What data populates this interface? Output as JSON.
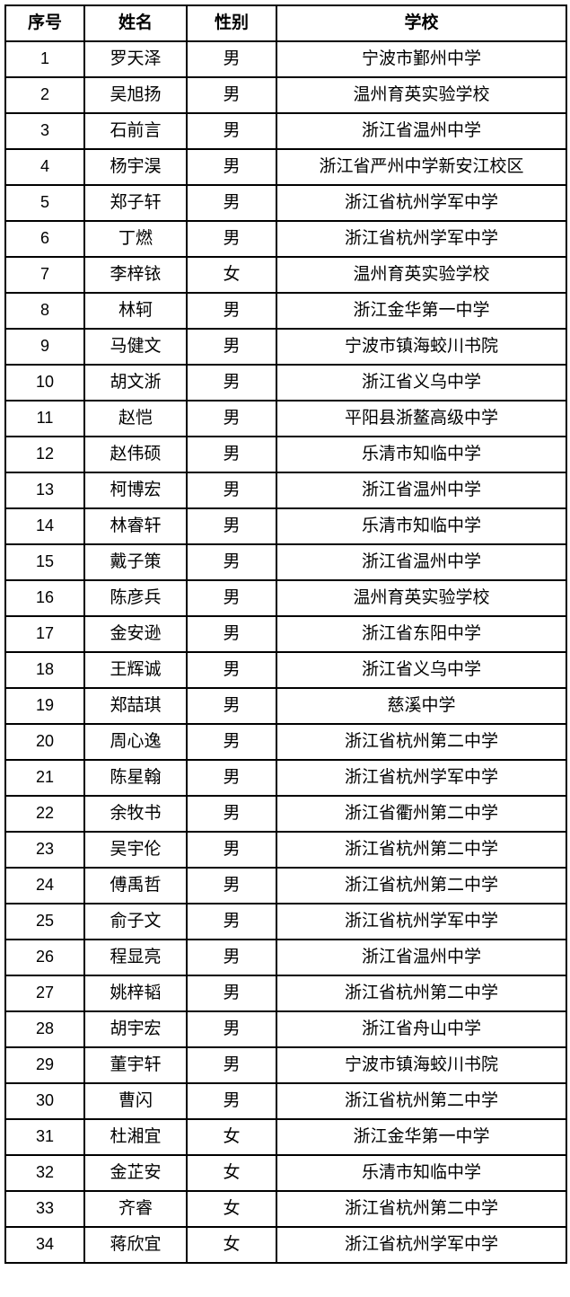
{
  "table": {
    "headers": {
      "no": "序号",
      "name": "姓名",
      "gender": "性别",
      "school": "学校"
    },
    "rows": [
      {
        "no": "1",
        "name": "罗天泽",
        "gender": "男",
        "school": "宁波市鄞州中学"
      },
      {
        "no": "2",
        "name": "吴旭扬",
        "gender": "男",
        "school": "温州育英实验学校"
      },
      {
        "no": "3",
        "name": "石前言",
        "gender": "男",
        "school": "浙江省温州中学"
      },
      {
        "no": "4",
        "name": "杨宇淏",
        "gender": "男",
        "school": "浙江省严州中学新安江校区"
      },
      {
        "no": "5",
        "name": "郑子轩",
        "gender": "男",
        "school": "浙江省杭州学军中学"
      },
      {
        "no": "6",
        "name": "丁燃",
        "gender": "男",
        "school": "浙江省杭州学军中学"
      },
      {
        "no": "7",
        "name": "李梓铱",
        "gender": "女",
        "school": "温州育英实验学校"
      },
      {
        "no": "8",
        "name": "林轲",
        "gender": "男",
        "school": "浙江金华第一中学"
      },
      {
        "no": "9",
        "name": "马健文",
        "gender": "男",
        "school": "宁波市镇海蛟川书院"
      },
      {
        "no": "10",
        "name": "胡文浙",
        "gender": "男",
        "school": "浙江省义乌中学"
      },
      {
        "no": "11",
        "name": "赵恺",
        "gender": "男",
        "school": "平阳县浙鳌高级中学"
      },
      {
        "no": "12",
        "name": "赵伟硕",
        "gender": "男",
        "school": "乐清市知临中学"
      },
      {
        "no": "13",
        "name": "柯博宏",
        "gender": "男",
        "school": "浙江省温州中学"
      },
      {
        "no": "14",
        "name": "林睿轩",
        "gender": "男",
        "school": "乐清市知临中学"
      },
      {
        "no": "15",
        "name": "戴子策",
        "gender": "男",
        "school": "浙江省温州中学"
      },
      {
        "no": "16",
        "name": "陈彦兵",
        "gender": "男",
        "school": "温州育英实验学校"
      },
      {
        "no": "17",
        "name": "金安逊",
        "gender": "男",
        "school": "浙江省东阳中学"
      },
      {
        "no": "18",
        "name": "王辉诚",
        "gender": "男",
        "school": "浙江省义乌中学"
      },
      {
        "no": "19",
        "name": "郑喆琪",
        "gender": "男",
        "school": "慈溪中学"
      },
      {
        "no": "20",
        "name": "周心逸",
        "gender": "男",
        "school": "浙江省杭州第二中学"
      },
      {
        "no": "21",
        "name": "陈星翰",
        "gender": "男",
        "school": "浙江省杭州学军中学"
      },
      {
        "no": "22",
        "name": "余牧书",
        "gender": "男",
        "school": "浙江省衢州第二中学"
      },
      {
        "no": "23",
        "name": "吴宇伦",
        "gender": "男",
        "school": "浙江省杭州第二中学"
      },
      {
        "no": "24",
        "name": "傅禹哲",
        "gender": "男",
        "school": "浙江省杭州第二中学"
      },
      {
        "no": "25",
        "name": "俞子文",
        "gender": "男",
        "school": "浙江省杭州学军中学"
      },
      {
        "no": "26",
        "name": "程显亮",
        "gender": "男",
        "school": "浙江省温州中学"
      },
      {
        "no": "27",
        "name": "姚梓韬",
        "gender": "男",
        "school": "浙江省杭州第二中学"
      },
      {
        "no": "28",
        "name": "胡宇宏",
        "gender": "男",
        "school": "浙江省舟山中学"
      },
      {
        "no": "29",
        "name": "董宇轩",
        "gender": "男",
        "school": "宁波市镇海蛟川书院"
      },
      {
        "no": "30",
        "name": "曹闪",
        "gender": "男",
        "school": "浙江省杭州第二中学"
      },
      {
        "no": "31",
        "name": "杜湘宜",
        "gender": "女",
        "school": "浙江金华第一中学"
      },
      {
        "no": "32",
        "name": "金芷安",
        "gender": "女",
        "school": "乐清市知临中学"
      },
      {
        "no": "33",
        "name": "齐睿",
        "gender": "女",
        "school": "浙江省杭州第二中学"
      },
      {
        "no": "34",
        "name": "蒋欣宜",
        "gender": "女",
        "school": "浙江省杭州学军中学"
      }
    ]
  }
}
